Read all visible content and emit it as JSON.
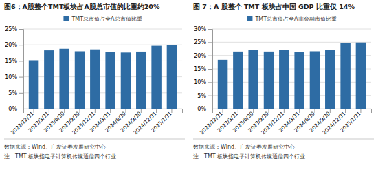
{
  "chart_data": [
    {
      "type": "bar",
      "title": "图6：A股整个TMT板块占A股总市值的比重约20%",
      "categories": [
        "2022/12/31",
        "2023/3/31",
        "2023/6/30",
        "2023/9/30",
        "2023/12/31",
        "2024/3/31",
        "2024/6/30",
        "2024/9/30",
        "2024/12/31",
        "2025/1/31"
      ],
      "series": [
        {
          "name": "TMT总市值占全A总市值比重",
          "color": "#2e6ca4",
          "values": [
            0.152,
            0.183,
            0.188,
            0.18,
            0.186,
            0.178,
            0.176,
            0.179,
            0.197,
            0.2
          ]
        }
      ],
      "ylim": [
        0,
        0.25
      ],
      "yticks": [
        {
          "value": 0,
          "label": "0%"
        },
        {
          "value": 0.05,
          "label": "5%"
        },
        {
          "value": 0.1,
          "label": "10%"
        },
        {
          "value": 0.15,
          "label": "15%"
        },
        {
          "value": 0.2,
          "label": "20%"
        },
        {
          "value": 0.25,
          "label": "25%"
        }
      ],
      "grid": true,
      "legend": "top",
      "annotations": [
        "数据来源：Wind、广发证券发展研究中心",
        "注：TMT 板块指电子计算机传媒通信四个行业"
      ]
    },
    {
      "type": "bar",
      "title": "图 7：A 股整个 TMT 板块占中国 GDP 比重仅 14%",
      "categories": [
        "2022/12/31",
        "2023/3/31",
        "2023/6/30",
        "2023/9/30",
        "2023/12/31",
        "2024/3/31",
        "2024/6/30",
        "2024/9/30",
        "2024/12/31",
        "2025/1/31"
      ],
      "series": [
        {
          "name": "TMT总市值占全A非金融市值比重",
          "color": "#2e6ca4",
          "values": [
            0.184,
            0.215,
            0.222,
            0.215,
            0.222,
            0.214,
            0.216,
            0.221,
            0.247,
            0.249
          ]
        }
      ],
      "ylim": [
        0,
        0.3
      ],
      "yticks": [
        {
          "value": 0,
          "label": "0%"
        },
        {
          "value": 0.05,
          "label": "5%"
        },
        {
          "value": 0.1,
          "label": "10%"
        },
        {
          "value": 0.15,
          "label": "15%"
        },
        {
          "value": 0.2,
          "label": "20%"
        },
        {
          "value": 0.25,
          "label": "25%"
        },
        {
          "value": 0.3,
          "label": "30%"
        }
      ],
      "grid": true,
      "legend": "top",
      "annotations": [
        "数据来源：Wind、广发证券发展研究中心",
        "注：TMT 板块指电子计算机传媒通信四个行业"
      ]
    }
  ]
}
